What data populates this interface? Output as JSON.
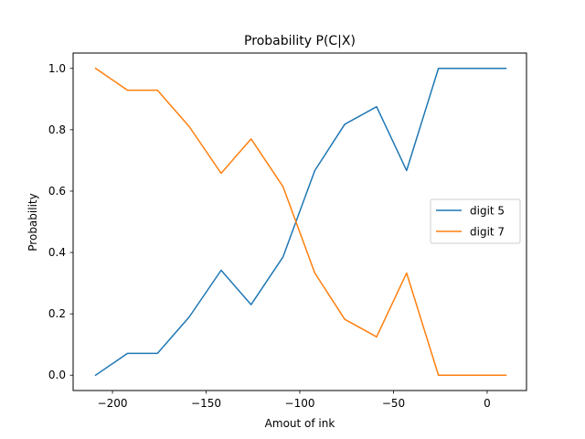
{
  "chart_data": {
    "type": "line",
    "title": "Probability P(C|X)",
    "xlabel": "Amout of ink",
    "ylabel": "Probability",
    "xlim": [
      -221,
      21
    ],
    "ylim": [
      -0.05,
      1.05
    ],
    "xticks": [
      -200,
      -150,
      -100,
      -50,
      0
    ],
    "xtick_labels": [
      "−200",
      "−150",
      "−100",
      "−50",
      "0"
    ],
    "yticks": [
      0.0,
      0.2,
      0.4,
      0.6,
      0.8,
      1.0
    ],
    "ytick_labels": [
      "0.0",
      "0.2",
      "0.4",
      "0.6",
      "0.8",
      "1.0"
    ],
    "grid": false,
    "legend_position": "center-right",
    "x": [
      -209,
      -192,
      -176,
      -159,
      -142,
      -126,
      -109,
      -92,
      -76,
      -59,
      -43,
      -26,
      -9,
      10
    ],
    "series": [
      {
        "name": "digit 5",
        "color": "#1f77b4",
        "values": [
          0.0,
          0.071,
          0.071,
          0.19,
          0.342,
          0.23,
          0.385,
          0.667,
          0.818,
          0.875,
          0.667,
          1.0,
          1.0,
          1.0
        ]
      },
      {
        "name": "digit 7",
        "color": "#ff7f0e",
        "values": [
          1.0,
          0.929,
          0.929,
          0.81,
          0.658,
          0.77,
          0.615,
          0.333,
          0.182,
          0.125,
          0.333,
          0.0,
          0.0,
          0.0
        ]
      }
    ]
  }
}
